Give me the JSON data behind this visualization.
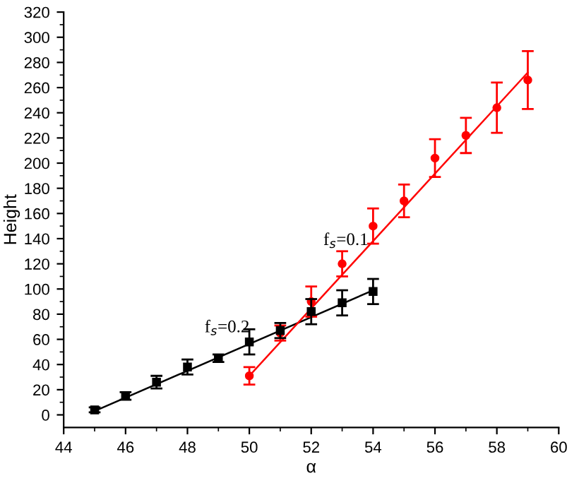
{
  "chart_data": {
    "type": "line",
    "xlabel": "α",
    "ylabel": "Height",
    "xlim": [
      44,
      60
    ],
    "xticks": [
      44,
      46,
      48,
      50,
      52,
      54,
      56,
      58,
      60
    ],
    "ylim": [
      -10,
      320
    ],
    "yticks": [
      0,
      20,
      40,
      60,
      80,
      100,
      120,
      140,
      160,
      180,
      200,
      220,
      240,
      260,
      280,
      300,
      320
    ],
    "grid": false,
    "legend": false,
    "series": [
      {
        "type": "scatter",
        "color": "#000000",
        "marker": "square",
        "x": [
          45,
          46,
          47,
          48,
          49,
          50,
          51,
          52,
          53,
          54
        ],
        "values": [
          4,
          15,
          26,
          38,
          45,
          58,
          67,
          82,
          89,
          98
        ],
        "errors": [
          2,
          3,
          5,
          6,
          3,
          10,
          6,
          10,
          10,
          10
        ]
      },
      {
        "color": "#000000",
        "x": [
          45,
          54
        ],
        "values": [
          3,
          99
        ]
      },
      {
        "type": "scatter",
        "color": "#ff0000",
        "marker": "circle",
        "x": [
          50,
          51,
          52,
          53,
          54,
          55,
          56,
          57,
          58,
          59
        ],
        "values": [
          31,
          65,
          90,
          120,
          150,
          170,
          204,
          222,
          244,
          266
        ],
        "errors": [
          7,
          6,
          12,
          10,
          14,
          13,
          15,
          14,
          20,
          23
        ]
      },
      {
        "color": "#ff0000",
        "x": [
          50,
          59
        ],
        "values": [
          31,
          272
        ]
      }
    ],
    "annotations": [
      "f$_{s}$=0.2",
      "f$_{s}$=0.1"
    ]
  }
}
